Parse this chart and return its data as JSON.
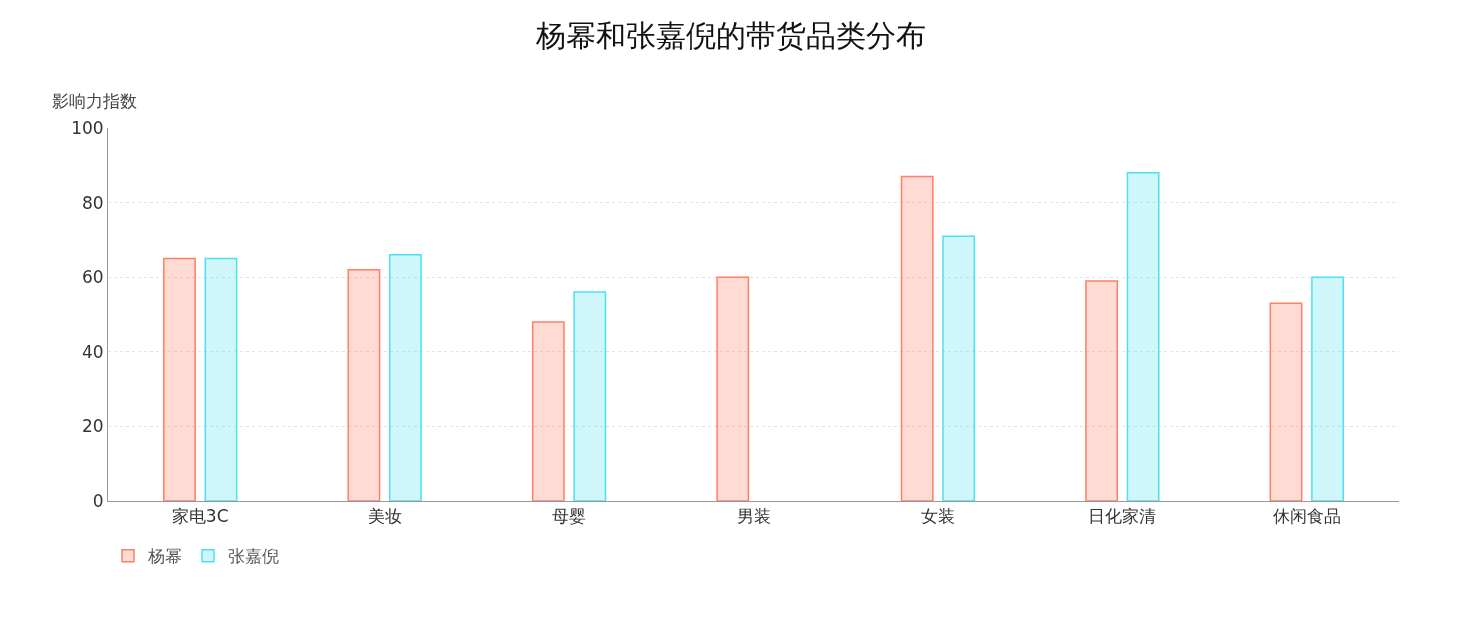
{
  "chart_data": {
    "type": "bar",
    "title": "杨幂和张嘉倪的带货品类分布",
    "ylabel": "影响力指数",
    "categories": [
      "家电3C",
      "美妆",
      "母婴",
      "男装",
      "女装",
      "日化家清",
      "休闲食品"
    ],
    "series": [
      {
        "name": "杨幂",
        "color": "#ff7f66",
        "values": [
          65,
          62,
          48,
          60,
          87,
          59,
          53
        ]
      },
      {
        "name": "张嘉倪",
        "color": "#4fe0f0",
        "values": [
          65,
          66,
          56,
          null,
          71,
          88,
          60
        ]
      }
    ],
    "ylim": [
      0,
      100
    ],
    "yticks": [
      0,
      20,
      40,
      60,
      80,
      100
    ],
    "grid": "y",
    "legend": "bottom left"
  }
}
